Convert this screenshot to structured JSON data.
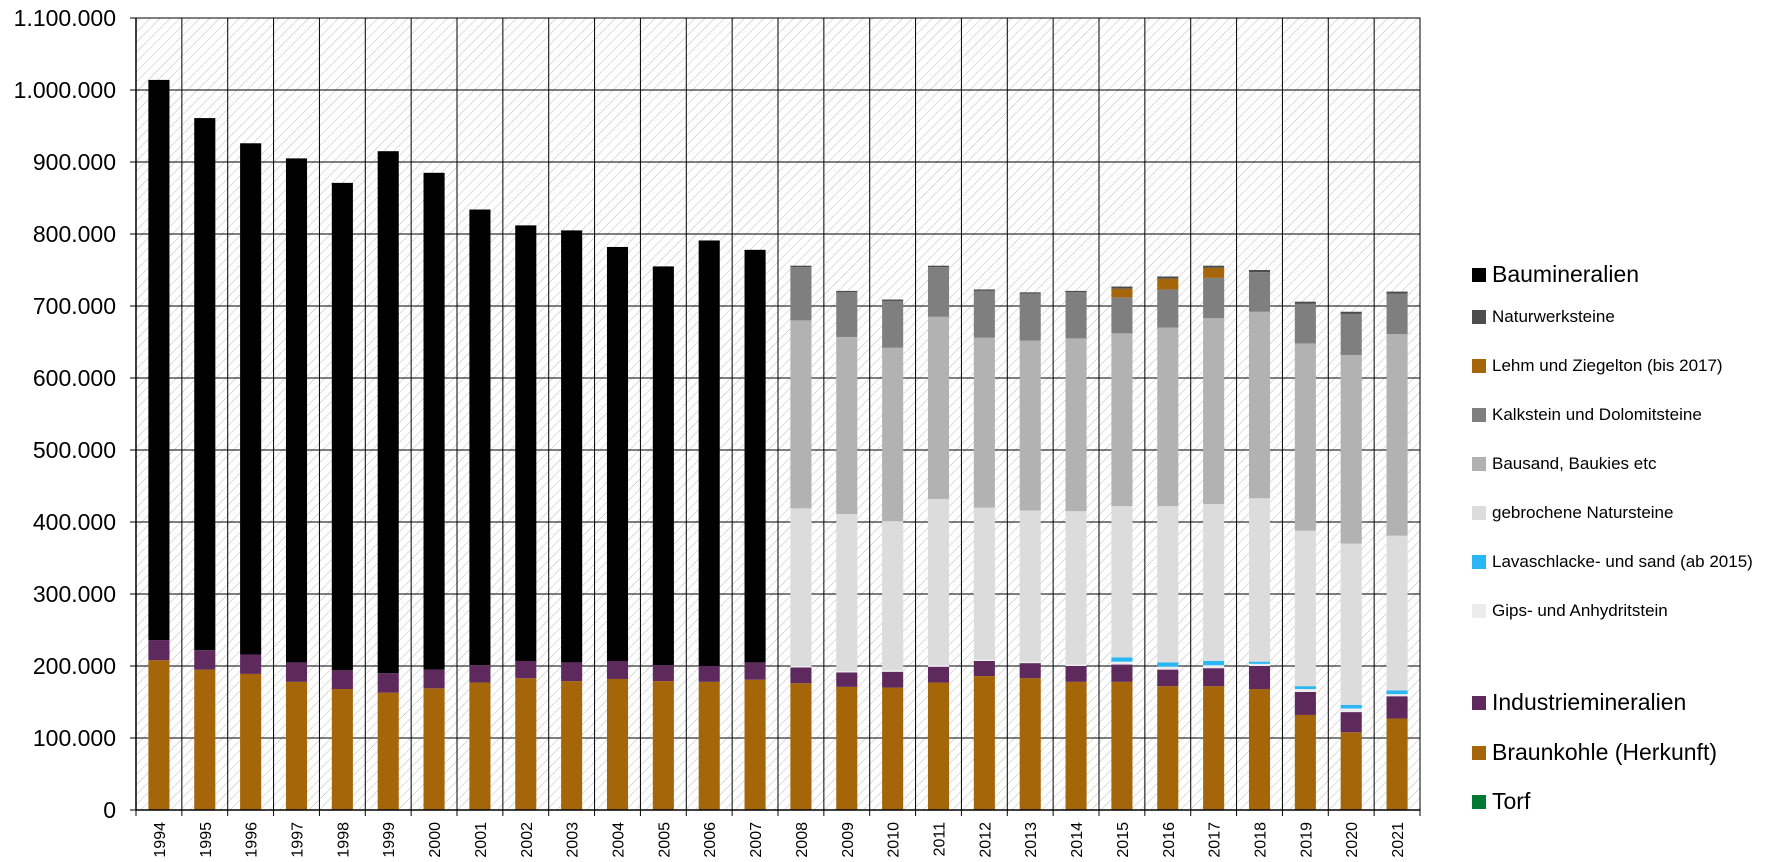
{
  "chart_data": {
    "type": "bar",
    "stacked": true,
    "title": "",
    "xlabel": "",
    "ylabel": "",
    "ylim": [
      0,
      1100000
    ],
    "yticks": [
      0,
      100000,
      200000,
      300000,
      400000,
      500000,
      600000,
      700000,
      800000,
      900000,
      1000000,
      1100000
    ],
    "ytick_labels": [
      "0",
      "100.000",
      "200.000",
      "300.000",
      "400.000",
      "500.000",
      "600.000",
      "700.000",
      "800.000",
      "900.000",
      "1.000.000",
      "1.100.000"
    ],
    "grid": true,
    "plot_background": "diagonal hatch",
    "legend_position": "right",
    "categories": [
      "1994",
      "1995",
      "1996",
      "1997",
      "1998",
      "1999",
      "2000",
      "2001",
      "2002",
      "2003",
      "2004",
      "2005",
      "2006",
      "2007",
      "2008",
      "2009",
      "2010",
      "2011",
      "2012",
      "2013",
      "2014",
      "2015",
      "2016",
      "2017",
      "2018",
      "2019",
      "2020",
      "2021"
    ],
    "series": [
      {
        "name": "Torf",
        "color": "#007a33",
        "values": [
          0,
          0,
          0,
          0,
          0,
          0,
          0,
          0,
          0,
          0,
          0,
          0,
          0,
          0,
          0,
          0,
          0,
          0,
          0,
          0,
          0,
          0,
          0,
          0,
          0,
          0,
          0,
          0
        ]
      },
      {
        "name": "Braunkohle (Herkunft)",
        "color": "#a5660a",
        "values": [
          208000,
          195000,
          189000,
          178000,
          168000,
          163000,
          169000,
          177000,
          183000,
          179000,
          182000,
          179000,
          178000,
          181000,
          176000,
          171000,
          170000,
          177000,
          186000,
          183000,
          178000,
          178000,
          172000,
          172000,
          168000,
          132000,
          108000,
          127000
        ]
      },
      {
        "name": "Industriemineralien",
        "color": "#5e2a5e",
        "values": [
          28000,
          27000,
          27000,
          27000,
          26000,
          27000,
          26000,
          24000,
          24000,
          26000,
          25000,
          22000,
          22000,
          24000,
          22000,
          20000,
          22000,
          22000,
          21000,
          21000,
          22000,
          24000,
          23000,
          25000,
          32000,
          32000,
          28000,
          31000
        ]
      },
      {
        "name": "Gips- und Anhydritstein",
        "color": "#ececec",
        "values": [
          0,
          0,
          0,
          0,
          0,
          0,
          0,
          0,
          0,
          0,
          0,
          0,
          0,
          0,
          2000,
          2000,
          2000,
          2000,
          2000,
          2000,
          2000,
          4000,
          4000,
          4000,
          3000,
          4000,
          5000,
          3000
        ]
      },
      {
        "name": "Lavaschlacke- und sand (ab 2015)",
        "color": "#29b6f2",
        "values": [
          0,
          0,
          0,
          0,
          0,
          0,
          0,
          0,
          0,
          0,
          0,
          0,
          0,
          0,
          0,
          0,
          0,
          0,
          0,
          0,
          0,
          6000,
          6000,
          6000,
          3000,
          4000,
          5000,
          5000
        ]
      },
      {
        "name": "gebrochene Natursteine",
        "color": "#dcdcdc",
        "values": [
          0,
          0,
          0,
          0,
          0,
          0,
          0,
          0,
          0,
          0,
          0,
          0,
          0,
          0,
          219000,
          218000,
          207000,
          231000,
          211000,
          210000,
          213000,
          210000,
          217000,
          218000,
          227000,
          216000,
          224000,
          215000
        ]
      },
      {
        "name": "Bausand, Baukies etc",
        "color": "#b2b2b2",
        "values": [
          0,
          0,
          0,
          0,
          0,
          0,
          0,
          0,
          0,
          0,
          0,
          0,
          0,
          0,
          261000,
          246000,
          241000,
          253000,
          236000,
          236000,
          240000,
          240000,
          248000,
          258000,
          259000,
          260000,
          262000,
          280000
        ]
      },
      {
        "name": "Kalkstein und Dolomitsteine",
        "color": "#7f7f7f",
        "values": [
          0,
          0,
          0,
          0,
          0,
          0,
          0,
          0,
          0,
          0,
          0,
          0,
          0,
          0,
          74000,
          62000,
          65000,
          69000,
          65000,
          65000,
          64000,
          50000,
          53000,
          56000,
          55000,
          55000,
          57000,
          56000
        ]
      },
      {
        "name": "Lehm und Ziegelton (bis 2017)",
        "color": "#a5660a",
        "values": [
          0,
          0,
          0,
          0,
          0,
          0,
          0,
          0,
          0,
          0,
          0,
          0,
          0,
          0,
          0,
          0,
          0,
          0,
          0,
          0,
          0,
          12000,
          15000,
          14000,
          0,
          0,
          0,
          0
        ]
      },
      {
        "name": "Naturwerksteine",
        "color": "#4d4d4d",
        "values": [
          0,
          0,
          0,
          0,
          0,
          0,
          0,
          0,
          0,
          0,
          0,
          0,
          0,
          0,
          2000,
          2000,
          2000,
          2000,
          2000,
          2000,
          2000,
          3000,
          3000,
          3000,
          3000,
          3000,
          3000,
          3000
        ]
      },
      {
        "name": "Baumineralien",
        "color": "#000000",
        "values": [
          778000,
          739000,
          710000,
          700000,
          677000,
          725000,
          690000,
          633000,
          605000,
          600000,
          575000,
          554000,
          591000,
          573000,
          0,
          0,
          0,
          0,
          0,
          0,
          0,
          0,
          0,
          0,
          0,
          0,
          0,
          0
        ]
      }
    ]
  },
  "legend": {
    "items": [
      {
        "label": "Baumineralien",
        "color": "#000000"
      },
      {
        "label": "Naturwerksteine",
        "color": "#4d4d4d"
      },
      {
        "label": "Lehm und Ziegelton (bis 2017)",
        "color": "#a5660a"
      },
      {
        "label": "Kalkstein und Dolomitsteine",
        "color": "#7f7f7f"
      },
      {
        "label": "Bausand, Baukies etc",
        "color": "#b2b2b2"
      },
      {
        "label": "gebrochene Natursteine",
        "color": "#dcdcdc"
      },
      {
        "label": "Lavaschlacke- und sand (ab 2015)",
        "color": "#29b6f2"
      },
      {
        "label": "Gips- und Anhydritstein",
        "color": "#ececec"
      },
      {
        "label": "Industriemineralien",
        "color": "#5e2a5e"
      },
      {
        "label": "Braunkohle (Herkunft)",
        "color": "#a5660a"
      },
      {
        "label": "Torf",
        "color": "#007a33"
      }
    ]
  }
}
